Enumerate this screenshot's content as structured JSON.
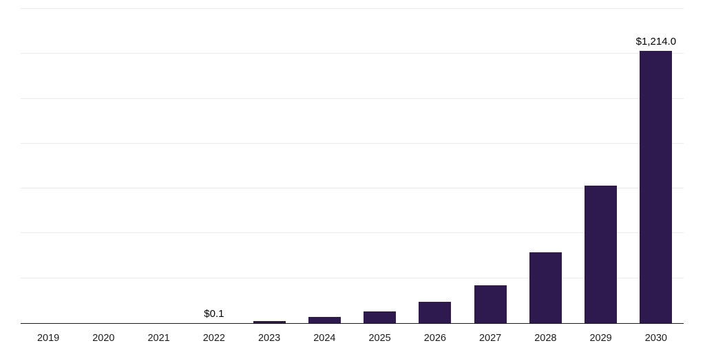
{
  "chart_data": {
    "type": "bar",
    "title": "",
    "xlabel": "",
    "ylabel": "",
    "categories": [
      "2019",
      "2020",
      "2021",
      "2022",
      "2023",
      "2024",
      "2025",
      "2026",
      "2027",
      "2028",
      "2029",
      "2030"
    ],
    "values": [
      0,
      0,
      0,
      0.1,
      9,
      27,
      51,
      95,
      170,
      316,
      614,
      1214
    ],
    "bar_labels": [
      "",
      "",
      "",
      "$0.1",
      "",
      "",
      "",
      "",
      "",
      "",
      "",
      "$1,214.0"
    ],
    "ylim": [
      0,
      1400
    ],
    "grid_step": 200,
    "grid": true,
    "legend": false,
    "colors": {
      "bar": "#2e1a4f",
      "gridline": "#e9e9ec",
      "axis_line": "#1a1a1a",
      "value_label": "#000000",
      "tick_label": "#1a1a1a"
    }
  }
}
